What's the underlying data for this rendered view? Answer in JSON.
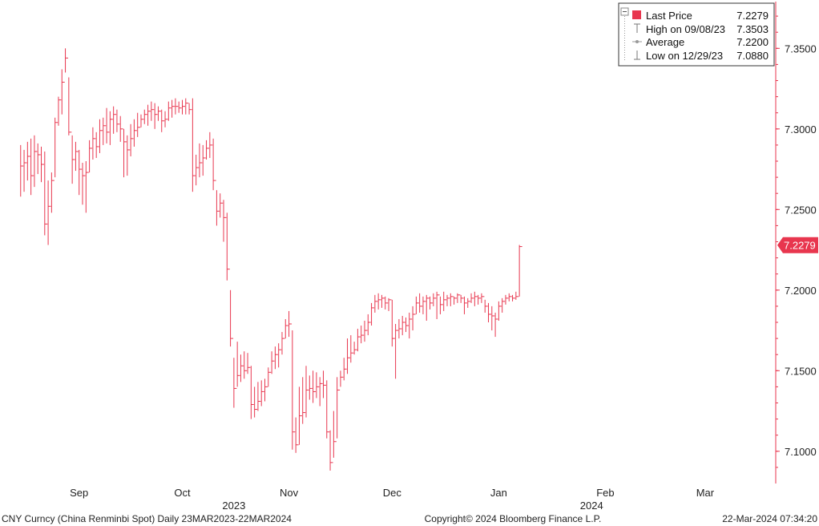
{
  "colors": {
    "series": "#e8364e",
    "axis": "#e8364e",
    "legend_border": "#333333",
    "text": "#222222"
  },
  "legend": {
    "rows": [
      {
        "label": "Last Price",
        "value": "7.2279",
        "icon": "square-marker-icon"
      },
      {
        "label": "High on 09/08/23",
        "value": "7.3503",
        "icon": "high-marker-icon"
      },
      {
        "label": "Average",
        "value": "7.2200",
        "icon": "average-marker-icon"
      },
      {
        "label": "Low on 12/29/23",
        "value": "7.0880",
        "icon": "low-marker-icon"
      }
    ]
  },
  "last_price_label": "7.2279",
  "footer": {
    "left": "CNY Curncy (China Renminbi Spot)  Daily 23MAR2023-22MAR2024",
    "center": "Copyright© 2024 Bloomberg Finance L.P.",
    "right": "22-Mar-2024 07:34:20"
  },
  "chart_data": {
    "type": "ohlc",
    "title": "",
    "y_axis_side": "right",
    "ylim": [
      7.08,
      7.38
    ],
    "y_ticks": [
      "7.1000",
      "7.1500",
      "7.2000",
      "7.2500",
      "7.3000",
      "7.3500"
    ],
    "months": [
      {
        "label": "Sep",
        "day": 17
      },
      {
        "label": "Oct",
        "day": 47
      },
      {
        "label": "Nov",
        "day": 78
      },
      {
        "label": "Dec",
        "day": 108
      },
      {
        "label": "Jan",
        "day": 139
      },
      {
        "label": "Feb",
        "day": 170
      },
      {
        "label": "Mar",
        "day": 199
      }
    ],
    "years": [
      {
        "label": "2023",
        "day": 62
      },
      {
        "label": "2024",
        "day": 166
      }
    ],
    "x_range": [
      -6,
      213
    ],
    "series": [
      {
        "name": "Last Price",
        "note": "daily bars: [day index, high, low, close]",
        "bars": [
          [
            0,
            7.29,
            7.258,
            7.277
          ],
          [
            1,
            7.287,
            7.261,
            7.279
          ],
          [
            2,
            7.292,
            7.268,
            7.283
          ],
          [
            3,
            7.294,
            7.259,
            7.271
          ],
          [
            4,
            7.296,
            7.264,
            7.286
          ],
          [
            5,
            7.291,
            7.272,
            7.284
          ],
          [
            6,
            7.289,
            7.267,
            7.278
          ],
          [
            7,
            7.286,
            7.234,
            7.241
          ],
          [
            8,
            7.268,
            7.228,
            7.252
          ],
          [
            9,
            7.273,
            7.248,
            7.268
          ],
          [
            10,
            7.307,
            7.27,
            7.304
          ],
          [
            11,
            7.32,
            7.302,
            7.318
          ],
          [
            12,
            7.337,
            7.309,
            7.329
          ],
          [
            13,
            7.35,
            7.335,
            7.344
          ],
          [
            14,
            7.332,
            7.296,
            7.298
          ],
          [
            15,
            7.296,
            7.266,
            7.281
          ],
          [
            16,
            7.292,
            7.274,
            7.286
          ],
          [
            17,
            7.287,
            7.259,
            7.275
          ],
          [
            18,
            7.279,
            7.253,
            7.271
          ],
          [
            19,
            7.28,
            7.248,
            7.273
          ],
          [
            20,
            7.293,
            7.273,
            7.288
          ],
          [
            21,
            7.301,
            7.281,
            7.294
          ],
          [
            22,
            7.298,
            7.282,
            7.289
          ],
          [
            23,
            7.306,
            7.285,
            7.299
          ],
          [
            24,
            7.307,
            7.29,
            7.302
          ],
          [
            25,
            7.313,
            7.291,
            7.298
          ],
          [
            26,
            7.311,
            7.29,
            7.306
          ],
          [
            27,
            7.314,
            7.297,
            7.309
          ],
          [
            28,
            7.312,
            7.298,
            7.303
          ],
          [
            29,
            7.308,
            7.292,
            7.3
          ],
          [
            30,
            7.3,
            7.27,
            7.292
          ],
          [
            31,
            7.296,
            7.271,
            7.287
          ],
          [
            32,
            7.303,
            7.283,
            7.294
          ],
          [
            33,
            7.306,
            7.289,
            7.299
          ],
          [
            34,
            7.31,
            7.295,
            7.301
          ],
          [
            35,
            7.309,
            7.301,
            7.306
          ],
          [
            36,
            7.312,
            7.303,
            7.309
          ],
          [
            37,
            7.315,
            7.302,
            7.311
          ],
          [
            38,
            7.317,
            7.305,
            7.312
          ],
          [
            39,
            7.316,
            7.3,
            7.309
          ],
          [
            40,
            7.314,
            7.305,
            7.311
          ],
          [
            41,
            7.312,
            7.298,
            7.305
          ],
          [
            42,
            7.311,
            7.301,
            7.306
          ],
          [
            43,
            7.317,
            7.305,
            7.313
          ],
          [
            44,
            7.318,
            7.307,
            7.314
          ],
          [
            45,
            7.319,
            7.309,
            7.314
          ],
          [
            46,
            7.317,
            7.31,
            7.313
          ],
          [
            47,
            7.318,
            7.309,
            7.314
          ],
          [
            48,
            7.319,
            7.309,
            7.316
          ],
          [
            49,
            7.316,
            7.309,
            7.312
          ],
          [
            50,
            7.319,
            7.261,
            7.271
          ],
          [
            51,
            7.284,
            7.265,
            7.276
          ],
          [
            52,
            7.291,
            7.27,
            7.279
          ],
          [
            53,
            7.29,
            7.271,
            7.282
          ],
          [
            54,
            7.293,
            7.281,
            7.288
          ],
          [
            55,
            7.298,
            7.282,
            7.29
          ],
          [
            56,
            7.294,
            7.262,
            7.268
          ],
          [
            57,
            7.262,
            7.24,
            7.249
          ],
          [
            58,
            7.26,
            7.245,
            7.254
          ],
          [
            59,
            7.256,
            7.23,
            7.245
          ],
          [
            60,
            7.248,
            7.206,
            7.213
          ],
          [
            61,
            7.2,
            7.165,
            7.17
          ],
          [
            62,
            7.158,
            7.127,
            7.139
          ],
          [
            63,
            7.168,
            7.14,
            7.147
          ],
          [
            64,
            7.16,
            7.143,
            7.153
          ],
          [
            65,
            7.162,
            7.145,
            7.15
          ],
          [
            66,
            7.161,
            7.148,
            7.152
          ],
          [
            67,
            7.153,
            7.12,
            7.129
          ],
          [
            68,
            7.14,
            7.121,
            7.126
          ],
          [
            69,
            7.143,
            7.125,
            7.131
          ],
          [
            70,
            7.144,
            7.128,
            7.137
          ],
          [
            71,
            7.145,
            7.131,
            7.14
          ],
          [
            72,
            7.152,
            7.14,
            7.149
          ],
          [
            73,
            7.162,
            7.148,
            7.156
          ],
          [
            74,
            7.165,
            7.151,
            7.16
          ],
          [
            75,
            7.167,
            7.152,
            7.163
          ],
          [
            76,
            7.174,
            7.16,
            7.17
          ],
          [
            77,
            7.182,
            7.17,
            7.178
          ],
          [
            78,
            7.187,
            7.171,
            7.179
          ],
          [
            79,
            7.175,
            7.101,
            7.112
          ],
          [
            80,
            7.099,
            7.121,
            7.104
          ],
          [
            81,
            7.14,
            7.104,
            7.122
          ],
          [
            82,
            7.146,
            7.117,
            7.124
          ],
          [
            83,
            7.153,
            7.121,
            7.138
          ],
          [
            84,
            7.147,
            7.132,
            7.139
          ],
          [
            85,
            7.15,
            7.13,
            7.137
          ],
          [
            86,
            7.149,
            7.133,
            7.14
          ],
          [
            87,
            7.146,
            7.128,
            7.142
          ],
          [
            88,
            7.15,
            7.133,
            7.141
          ],
          [
            89,
            7.144,
            7.108,
            7.112
          ],
          [
            90,
            7.113,
            7.088,
            7.093
          ],
          [
            91,
            7.125,
            7.096,
            7.106
          ],
          [
            92,
            7.146,
            7.108,
            7.138
          ],
          [
            93,
            7.15,
            7.14,
            7.146
          ],
          [
            94,
            7.158,
            7.144,
            7.151
          ],
          [
            95,
            7.17,
            7.148,
            7.158
          ],
          [
            96,
            7.172,
            7.155,
            7.161
          ],
          [
            97,
            7.168,
            7.16,
            7.163
          ],
          [
            98,
            7.176,
            7.162,
            7.171
          ],
          [
            99,
            7.178,
            7.167,
            7.172
          ],
          [
            100,
            7.181,
            7.168,
            7.175
          ],
          [
            101,
            7.185,
            7.172,
            7.18
          ],
          [
            102,
            7.192,
            7.178,
            7.189
          ],
          [
            103,
            7.197,
            7.186,
            7.193
          ],
          [
            104,
            7.198,
            7.188,
            7.194
          ],
          [
            105,
            7.197,
            7.189,
            7.195
          ],
          [
            106,
            7.196,
            7.188,
            7.192
          ],
          [
            107,
            7.195,
            7.187,
            7.194
          ],
          [
            108,
            7.194,
            7.165,
            7.17
          ],
          [
            109,
            7.179,
            7.145,
            7.175
          ],
          [
            110,
            7.182,
            7.17,
            7.176
          ],
          [
            111,
            7.184,
            7.172,
            7.18
          ],
          [
            112,
            7.183,
            7.174,
            7.178
          ],
          [
            113,
            7.186,
            7.17,
            7.182
          ],
          [
            114,
            7.19,
            7.175,
            7.185
          ],
          [
            115,
            7.196,
            7.185,
            7.192
          ],
          [
            116,
            7.198,
            7.186,
            7.19
          ],
          [
            117,
            7.196,
            7.185,
            7.193
          ],
          [
            118,
            7.197,
            7.181,
            7.195
          ],
          [
            119,
            7.196,
            7.188,
            7.192
          ],
          [
            120,
            7.198,
            7.19,
            7.195
          ],
          [
            121,
            7.199,
            7.182,
            7.197
          ],
          [
            122,
            7.196,
            7.185,
            7.191
          ],
          [
            123,
            7.199,
            7.187,
            7.194
          ],
          [
            124,
            7.197,
            7.19,
            7.195
          ],
          [
            125,
            7.198,
            7.19,
            7.196
          ],
          [
            126,
            7.196,
            7.191,
            7.195
          ],
          [
            127,
            7.198,
            7.192,
            7.197
          ],
          [
            128,
            7.197,
            7.192,
            7.195
          ],
          [
            129,
            7.196,
            7.185,
            7.192
          ],
          [
            130,
            7.195,
            7.189,
            7.193
          ],
          [
            131,
            7.198,
            7.192,
            7.195
          ],
          [
            132,
            7.199,
            7.19,
            7.196
          ],
          [
            133,
            7.197,
            7.191,
            7.195
          ],
          [
            134,
            7.198,
            7.192,
            7.196
          ],
          [
            135,
            7.194,
            7.186,
            7.19
          ],
          [
            136,
            7.192,
            7.18,
            7.185
          ],
          [
            137,
            7.19,
            7.175,
            7.184
          ],
          [
            138,
            7.186,
            7.171,
            7.182
          ],
          [
            139,
            7.193,
            7.181,
            7.19
          ],
          [
            140,
            7.195,
            7.186,
            7.193
          ],
          [
            141,
            7.197,
            7.191,
            7.195
          ],
          [
            142,
            7.198,
            7.193,
            7.196
          ],
          [
            143,
            7.197,
            7.193,
            7.195
          ],
          [
            144,
            7.199,
            7.194,
            7.196
          ],
          [
            145,
            7.228,
            7.196,
            7.227
          ]
        ]
      }
    ]
  }
}
